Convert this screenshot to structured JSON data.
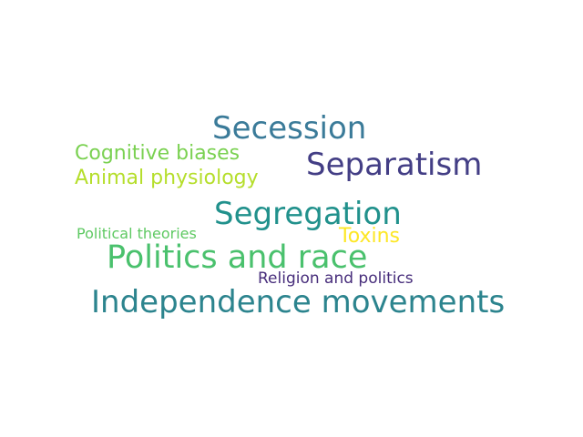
{
  "words": [
    {
      "text": "Secession",
      "color": "#3b7b99"
    },
    {
      "text": "Separatism",
      "color": "#433e85"
    },
    {
      "text": "Cognitive biases",
      "color": "#7ad151"
    },
    {
      "text": "Animal physiology",
      "color": "#b5de2b"
    },
    {
      "text": "Segregation",
      "color": "#21918c"
    },
    {
      "text": "Political theories",
      "color": "#5ec962"
    },
    {
      "text": "Toxins",
      "color": "#fde725"
    },
    {
      "text": "Politics and race",
      "color": "#4ac16d"
    },
    {
      "text": "Religion and politics",
      "color": "#472d7b"
    },
    {
      "text": "Independence movements",
      "color": "#2c848e"
    }
  ]
}
